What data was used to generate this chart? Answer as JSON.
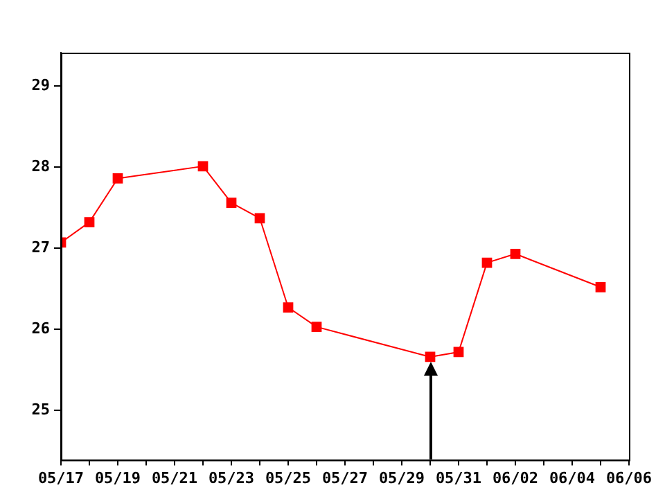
{
  "chart_data": {
    "type": "line",
    "x": [
      "--05-17",
      "--05-18",
      "--05-19",
      "--05-22",
      "--05-23",
      "--05-24",
      "--05-25",
      "--05-26",
      "--05-30",
      "--05-31",
      "--06-01",
      "--06-02",
      "--06-05"
    ],
    "series": [
      {
        "color": "#ff0000",
        "values": [
          27.07,
          27.32,
          27.86,
          28.01,
          27.56,
          27.37,
          26.27,
          26.03,
          25.66,
          25.72,
          26.82,
          26.93,
          26.52
        ]
      }
    ],
    "xlim": [
      "--05-17",
      "--06-06"
    ],
    "xticks": [
      {
        "value": "--05-17",
        "label": "05/17"
      },
      {
        "value": "--05-18",
        "label": null
      },
      {
        "value": "--05-19",
        "label": "05/19"
      },
      {
        "value": "--05-20",
        "label": null
      },
      {
        "value": "--05-21",
        "label": "05/21"
      },
      {
        "value": "--05-22",
        "label": null
      },
      {
        "value": "--05-23",
        "label": "05/23"
      },
      {
        "value": "--05-24",
        "label": null
      },
      {
        "value": "--05-25",
        "label": "05/25"
      },
      {
        "value": "--05-26",
        "label": null
      },
      {
        "value": "--05-27",
        "label": "05/27"
      },
      {
        "value": "--05-28",
        "label": null
      },
      {
        "value": "--05-29",
        "label": "05/29"
      },
      {
        "value": "--05-30",
        "label": null
      },
      {
        "value": "--05-31",
        "label": "05/31"
      },
      {
        "value": "--06-01",
        "label": null
      },
      {
        "value": "--06-02",
        "label": "06/02"
      },
      {
        "value": "--06-03",
        "label": null
      },
      {
        "value": "--06-04",
        "label": "06/04"
      },
      {
        "value": "--06-05",
        "label": null
      },
      {
        "value": "--06-06",
        "label": "06/06"
      }
    ],
    "ylim": [
      24.39,
      29.41
    ],
    "yticks": [
      25,
      26,
      27,
      28,
      29
    ],
    "ref_lines": [
      {
        "axis": "x",
        "value": "--05-30",
        "color": "#000000"
      }
    ],
    "grid": false,
    "legend": false,
    "marker": "square",
    "line_style": "solid"
  }
}
